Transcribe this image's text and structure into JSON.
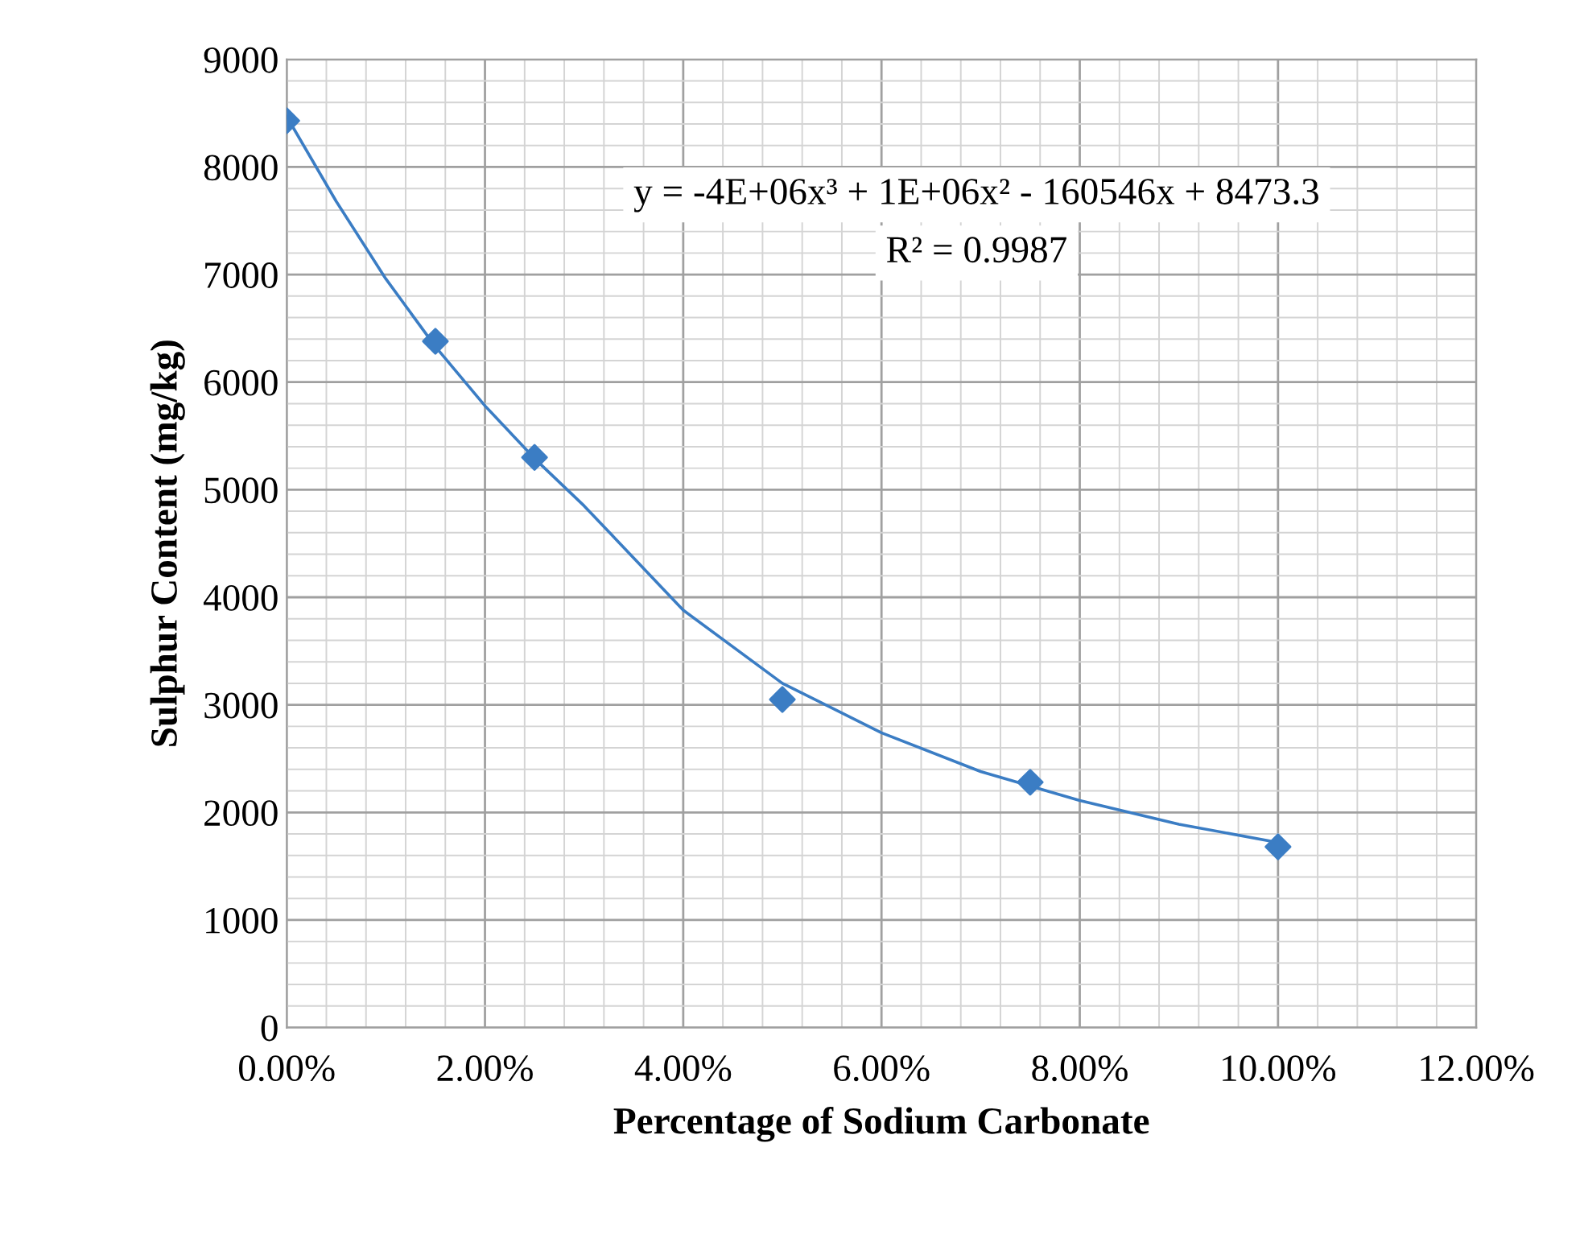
{
  "chart_data": {
    "type": "scatter",
    "xlabel": "Percentage of Sodium Carbonate",
    "ylabel": "Sulphur Content (mg/kg)",
    "x": [
      0,
      0.015,
      0.025,
      0.05,
      0.075,
      0.1
    ],
    "series": [
      {
        "color": "#3b7dc4",
        "marker": "diamond",
        "values": [
          8430,
          6380,
          5300,
          3050,
          2280,
          1680
        ]
      },
      {
        "type": "line",
        "color": "#3b7dc4",
        "line_style": "solid",
        "x": [
          0,
          0.005,
          0.01,
          0.015,
          0.02,
          0.025,
          0.03,
          0.04,
          0.05,
          0.06,
          0.07,
          0.08,
          0.09,
          0.1
        ],
        "values": [
          8470,
          7680,
          6960,
          6330,
          5780,
          5290,
          4850,
          3880,
          3200,
          2740,
          2380,
          2110,
          1890,
          1720
        ]
      }
    ],
    "annotations": [
      "y = -4E+06x³ + 1E+06x² - 160546x + 8473.3",
      "R² = 0.9987"
    ],
    "xlim": [
      0,
      0.12
    ],
    "ylim": [
      0,
      9000
    ],
    "xticks": [
      {
        "value": 0,
        "label": "0.00%"
      },
      {
        "value": 0.02,
        "label": "2.00%"
      },
      {
        "value": 0.04,
        "label": "4.00%"
      },
      {
        "value": 0.06,
        "label": "6.00%"
      },
      {
        "value": 0.08,
        "label": "8.00%"
      },
      {
        "value": 0.1,
        "label": "10.00%"
      },
      {
        "value": 0.12,
        "label": "12.00%"
      }
    ],
    "yticks": [
      0,
      1000,
      2000,
      3000,
      4000,
      5000,
      6000,
      7000,
      8000,
      9000
    ],
    "grid": true,
    "legend": false
  }
}
